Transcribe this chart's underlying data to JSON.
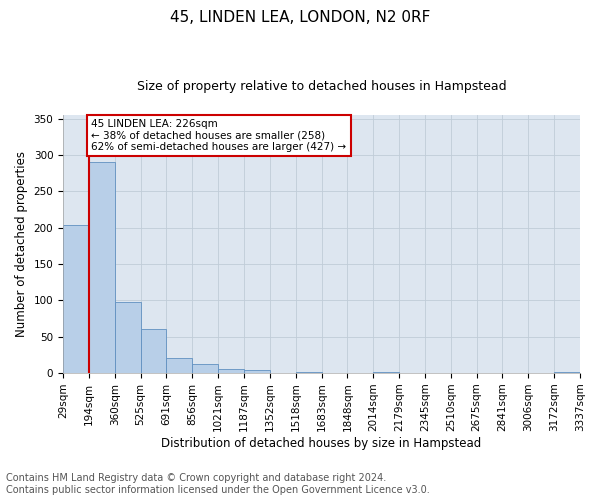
{
  "title": "45, LINDEN LEA, LONDON, N2 0RF",
  "subtitle": "Size of property relative to detached houses in Hampstead",
  "xlabel": "Distribution of detached houses by size in Hampstead",
  "ylabel": "Number of detached properties",
  "bar_color": "#b8cfe8",
  "bar_edge_color": "#6090c0",
  "grid_color": "#c0ccd8",
  "bg_color": "#dde6f0",
  "bin_labels": [
    "29sqm",
    "194sqm",
    "360sqm",
    "525sqm",
    "691sqm",
    "856sqm",
    "1021sqm",
    "1187sqm",
    "1352sqm",
    "1518sqm",
    "1683sqm",
    "1848sqm",
    "2014sqm",
    "2179sqm",
    "2345sqm",
    "2510sqm",
    "2675sqm",
    "2841sqm",
    "3006sqm",
    "3172sqm",
    "3337sqm"
  ],
  "bar_heights": [
    204,
    291,
    97,
    60,
    20,
    12,
    5,
    4,
    0,
    2,
    0,
    0,
    2,
    0,
    0,
    0,
    0,
    0,
    0,
    2
  ],
  "bin_edges_x": [
    0,
    1,
    2,
    3,
    4,
    5,
    6,
    7,
    8,
    9,
    10,
    11,
    12,
    13,
    14,
    15,
    16,
    17,
    18,
    19,
    20
  ],
  "vline_x": 1.0,
  "vline_color": "#cc0000",
  "annotation_lines": [
    "45 LINDEN LEA: 226sqm",
    "← 38% of detached houses are smaller (258)",
    "62% of semi-detached houses are larger (427) →"
  ],
  "annotation_box_color": "#cc0000",
  "ylim": [
    0,
    355
  ],
  "yticks": [
    0,
    50,
    100,
    150,
    200,
    250,
    300,
    350
  ],
  "footer_line1": "Contains HM Land Registry data © Crown copyright and database right 2024.",
  "footer_line2": "Contains public sector information licensed under the Open Government Licence v3.0.",
  "title_fontsize": 11,
  "subtitle_fontsize": 9,
  "axis_label_fontsize": 8.5,
  "tick_fontsize": 7.5,
  "footer_fontsize": 7
}
